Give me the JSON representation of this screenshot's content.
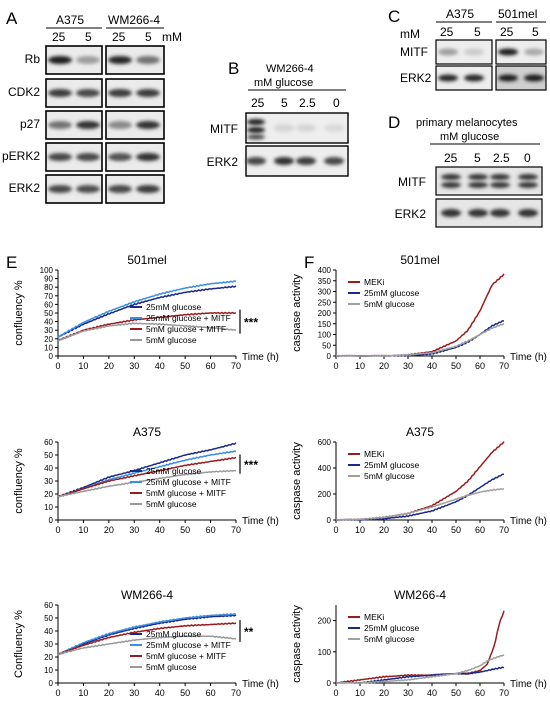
{
  "panelA": {
    "letter": "A",
    "lines": [
      "A375",
      "WM266-4"
    ],
    "conc": [
      "25",
      "5",
      "25",
      "5"
    ],
    "unit": "mM",
    "proteins": [
      "Rb",
      "CDK2",
      "p27",
      "pERK2",
      "ERK2"
    ],
    "intensity": [
      [
        [
          0.95,
          0.35
        ],
        [
          0.9,
          0.55
        ]
      ],
      [
        [
          0.8,
          0.75
        ],
        [
          0.8,
          0.8
        ]
      ],
      [
        [
          0.55,
          0.85
        ],
        [
          0.45,
          0.85
        ]
      ],
      [
        [
          0.75,
          0.75
        ],
        [
          0.7,
          0.85
        ]
      ],
      [
        [
          0.75,
          0.72
        ],
        [
          0.75,
          0.8
        ]
      ]
    ]
  },
  "panelB": {
    "letter": "B",
    "header": [
      "WM266-4",
      "mM glucose"
    ],
    "conc": [
      "25",
      "5",
      "2.5",
      "0"
    ],
    "proteins": [
      "MITF",
      "ERK2"
    ],
    "intensity": [
      [
        0.95,
        0.1,
        0.1,
        0.08
      ],
      [
        0.75,
        0.85,
        0.8,
        0.75
      ]
    ]
  },
  "panelC": {
    "letter": "C",
    "lines": [
      "A375",
      "501mel"
    ],
    "unit": "mM",
    "conc": [
      "25",
      "5",
      "25",
      "5"
    ],
    "proteins": [
      "MITF",
      "ERK2"
    ],
    "intensity": [
      [
        [
          0.35,
          0.15
        ],
        [
          0.95,
          0.3
        ]
      ],
      [
        [
          0.9,
          0.9
        ],
        [
          0.95,
          0.95
        ]
      ]
    ]
  },
  "panelD": {
    "letter": "D",
    "header": [
      "primary melanocytes",
      "mM glucose"
    ],
    "conc": [
      "25",
      "5",
      "2.5",
      "0"
    ],
    "proteins": [
      "MITF",
      "ERK2"
    ],
    "intensity": [
      [
        0.85,
        0.85,
        0.85,
        0.85
      ],
      [
        0.85,
        0.85,
        0.85,
        0.85
      ]
    ]
  },
  "panelE": {
    "letter": "E",
    "xlabel": "Time (h)",
    "xticks": [
      "0",
      "10",
      "20",
      "30",
      "40",
      "50",
      "60",
      "70"
    ]
  },
  "panelF": {
    "letter": "F",
    "xlabel": "Time (h)",
    "xticks": [
      "0",
      "10",
      "20",
      "30",
      "40",
      "50",
      "60",
      "70"
    ]
  },
  "chart_data": [
    {
      "type": "line",
      "title": "501mel",
      "ylabel": "confluency %",
      "xlim": [
        0,
        70
      ],
      "ylim": [
        0,
        100
      ],
      "yticks": [
        0,
        10,
        20,
        30,
        40,
        50,
        60,
        70,
        80,
        90,
        100
      ],
      "x": [
        0,
        10,
        20,
        30,
        40,
        50,
        60,
        70
      ],
      "significance": "***",
      "series": [
        {
          "name": "25mM glucose",
          "color": "#1a2a8c",
          "values": [
            22,
            37,
            49,
            60,
            68,
            74,
            78,
            81
          ]
        },
        {
          "name": "25mM glucose + MITF",
          "color": "#3a8fe0",
          "values": [
            22,
            39,
            52,
            63,
            72,
            79,
            84,
            87
          ]
        },
        {
          "name": "5mM glucose + MITF",
          "color": "#9b1c1c",
          "values": [
            18,
            30,
            37,
            42,
            45,
            48,
            50,
            50
          ]
        },
        {
          "name": "5mM glucose",
          "color": "#9a9a9a",
          "values": [
            18,
            29,
            35,
            38,
            37,
            35,
            33,
            30
          ]
        }
      ]
    },
    {
      "type": "line",
      "title": "A375",
      "ylabel": "confluency %",
      "xlim": [
        0,
        70
      ],
      "ylim": [
        0,
        60
      ],
      "yticks": [
        0,
        10,
        20,
        30,
        40,
        50,
        60
      ],
      "x": [
        0,
        10,
        20,
        30,
        40,
        50,
        60,
        70
      ],
      "significance": "***",
      "series": [
        {
          "name": "25mM glucose",
          "color": "#1a2a8c",
          "values": [
            18,
            25,
            33,
            38,
            44,
            50,
            54,
            59
          ]
        },
        {
          "name": "25mM glucose + MITF",
          "color": "#3a8fe0",
          "values": [
            18,
            24,
            31,
            36,
            41,
            46,
            50,
            53
          ]
        },
        {
          "name": "5mM glucose + MITF",
          "color": "#9b1c1c",
          "values": [
            18,
            24,
            30,
            34,
            38,
            42,
            45,
            48
          ]
        },
        {
          "name": "5mM glucose",
          "color": "#9a9a9a",
          "values": [
            18,
            22,
            26,
            29,
            32,
            35,
            37,
            38
          ]
        }
      ]
    },
    {
      "type": "line",
      "title": "WM266-4",
      "ylabel": "Confluency %",
      "xlim": [
        0,
        70
      ],
      "ylim": [
        0,
        60
      ],
      "yticks": [
        0,
        10,
        20,
        30,
        40,
        50,
        60
      ],
      "x": [
        0,
        10,
        20,
        30,
        40,
        50,
        60,
        70
      ],
      "significance": "**",
      "series": [
        {
          "name": "25mM glucose",
          "color": "#1a2a8c",
          "values": [
            22,
            30,
            37,
            42,
            46,
            49,
            51,
            52
          ]
        },
        {
          "name": "25mM glucose + MITF",
          "color": "#3a8fe0",
          "values": [
            22,
            31,
            38,
            43,
            47,
            50,
            52,
            53
          ]
        },
        {
          "name": "5mM glucose + MITF",
          "color": "#9b1c1c",
          "values": [
            22,
            29,
            35,
            39,
            42,
            44,
            45,
            46
          ]
        },
        {
          "name": "5mM glucose",
          "color": "#9a9a9a",
          "values": [
            22,
            27,
            30,
            33,
            35,
            36,
            36,
            34
          ]
        }
      ]
    },
    {
      "type": "line",
      "title": "501mel",
      "ylabel": "caspase activity",
      "xlim": [
        0,
        70
      ],
      "ylim": [
        0,
        400
      ],
      "yticks": [
        0,
        50,
        100,
        150,
        200,
        250,
        300,
        350,
        400
      ],
      "x": [
        0,
        10,
        20,
        30,
        40,
        50,
        55,
        60,
        65,
        70
      ],
      "series": [
        {
          "name": "MEKi",
          "color": "#9b1c1c",
          "values": [
            0,
            0,
            0,
            5,
            20,
            70,
            120,
            210,
            330,
            380
          ]
        },
        {
          "name": "25mM glucose",
          "color": "#1a2a8c",
          "values": [
            0,
            0,
            0,
            2,
            10,
            40,
            65,
            100,
            140,
            165
          ]
        },
        {
          "name": "5mM glucose",
          "color": "#a0a0a0",
          "values": [
            0,
            0,
            0,
            5,
            15,
            45,
            70,
            100,
            130,
            150
          ]
        }
      ]
    },
    {
      "type": "line",
      "title": "A375",
      "ylabel": "caspase activity",
      "xlim": [
        0,
        70
      ],
      "ylim": [
        0,
        600
      ],
      "yticks": [
        0,
        200,
        400,
        600
      ],
      "x": [
        0,
        10,
        20,
        30,
        40,
        50,
        55,
        60,
        65,
        70
      ],
      "series": [
        {
          "name": "MEKi",
          "color": "#9b1c1c",
          "values": [
            0,
            5,
            20,
            50,
            110,
            220,
            300,
            410,
            520,
            600
          ]
        },
        {
          "name": "25mM glucose",
          "color": "#1a2a8c",
          "values": [
            0,
            0,
            10,
            30,
            70,
            140,
            190,
            250,
            310,
            355
          ]
        },
        {
          "name": "5mM glucose",
          "color": "#a0a0a0",
          "values": [
            0,
            5,
            20,
            50,
            100,
            160,
            190,
            215,
            230,
            240
          ]
        }
      ]
    },
    {
      "type": "line",
      "title": "WM266-4",
      "ylabel": "caspase activity",
      "xlim": [
        0,
        70
      ],
      "ylim": [
        0,
        250
      ],
      "yticks": [
        0,
        100,
        200
      ],
      "x": [
        0,
        10,
        20,
        30,
        40,
        50,
        55,
        60,
        63,
        66,
        68,
        70
      ],
      "series": [
        {
          "name": "MEKi",
          "color": "#9b1c1c",
          "values": [
            0,
            10,
            20,
            25,
            25,
            30,
            30,
            40,
            60,
            120,
            190,
            230
          ]
        },
        {
          "name": "25mM glucose",
          "color": "#1a2a8c",
          "values": [
            0,
            0,
            10,
            20,
            25,
            30,
            30,
            35,
            40,
            45,
            48,
            50
          ]
        },
        {
          "name": "5mM glucose",
          "color": "#a0a0a0",
          "values": [
            0,
            0,
            5,
            10,
            20,
            30,
            40,
            55,
            70,
            80,
            85,
            90
          ]
        }
      ]
    }
  ]
}
